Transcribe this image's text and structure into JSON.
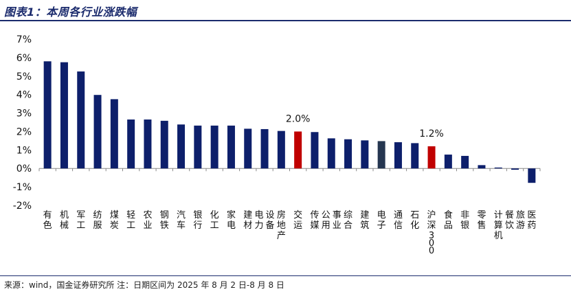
{
  "header": {
    "title": "图表1：本周各行业涨跌幅"
  },
  "footer": {
    "source": "来源：wind，国金证券研究所   注：日期区间为 2025 年 8 月 2 日-8 月 8 日"
  },
  "chart_data": {
    "type": "bar",
    "categories": [
      "有色",
      "机械",
      "军工",
      "纺服",
      "煤炭",
      "轻工",
      "农业",
      "钢铁",
      "汽车",
      "银行",
      "化工",
      "家电",
      "建材",
      "电力设备",
      "房地产",
      "交运",
      "传媒",
      "公用事业",
      "综合",
      "建筑",
      "电子",
      "通信",
      "石化",
      "沪深300",
      "食品",
      "非银",
      "零售",
      "计算机",
      "餐饮旅游",
      "医药"
    ],
    "values": [
      5.8,
      5.75,
      5.25,
      3.98,
      3.75,
      2.65,
      2.65,
      2.58,
      2.38,
      2.32,
      2.32,
      2.32,
      2.15,
      2.13,
      2.03,
      2.0,
      1.97,
      1.63,
      1.58,
      1.52,
      1.48,
      1.42,
      1.37,
      1.2,
      0.75,
      0.68,
      0.18,
      0.05,
      -0.07,
      -0.78
    ],
    "colors": [
      "#0d1f6b",
      "#0d1f6b",
      "#0d1f6b",
      "#0d1f6b",
      "#0d1f6b",
      "#0d1f6b",
      "#0d1f6b",
      "#0d1f6b",
      "#0d1f6b",
      "#0d1f6b",
      "#0d1f6b",
      "#0d1f6b",
      "#0d1f6b",
      "#0d1f6b",
      "#0d1f6b",
      "#c00000",
      "#0d1f6b",
      "#0d1f6b",
      "#0d1f6b",
      "#0d1f6b",
      "#253650",
      "#0d1f6b",
      "#0d1f6b",
      "#c00000",
      "#0d1f6b",
      "#0d1f6b",
      "#0d1f6b",
      "#0d1f6b",
      "#0d1f6b",
      "#0d1f6b"
    ],
    "annotations": [
      {
        "category": "交运",
        "text": "2.0%"
      },
      {
        "category": "沪深300",
        "text": "1.2%"
      }
    ],
    "yticks": [
      "7%",
      "6%",
      "5%",
      "4%",
      "3%",
      "2%",
      "1%",
      "0%",
      "-1%",
      "-2%"
    ],
    "ylim": [
      -2,
      7
    ],
    "xlabel": "",
    "ylabel": "",
    "grid": false,
    "legend": "none"
  }
}
